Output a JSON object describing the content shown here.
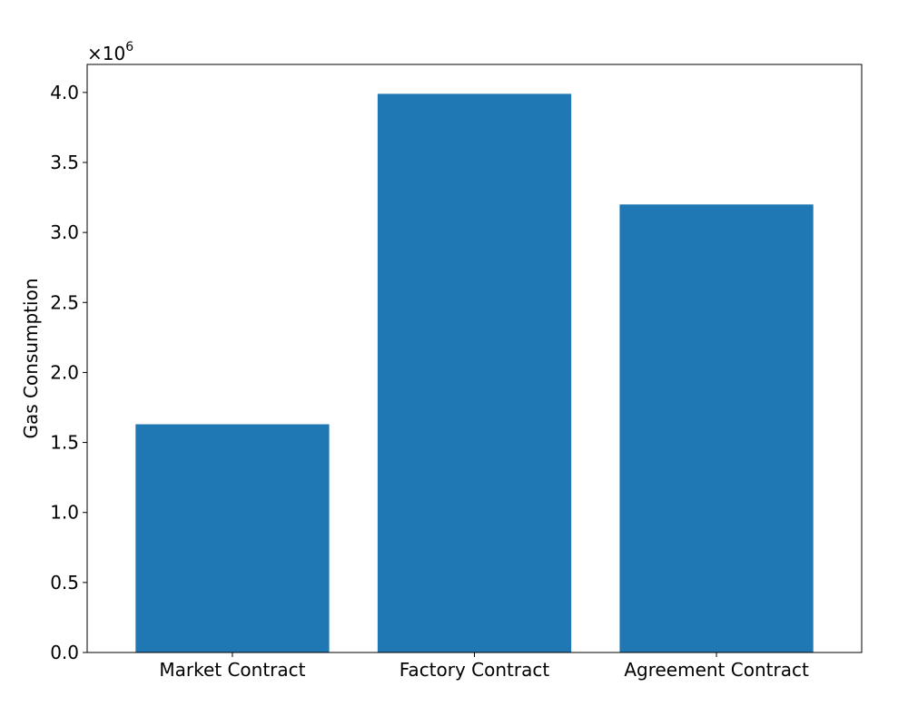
{
  "chart_data": {
    "type": "bar",
    "title": "",
    "xlabel": "",
    "ylabel": "Gas Consumption",
    "y_offset_base": "×10",
    "y_offset_exponent": "6",
    "y_scale_factor": 1000000,
    "categories": [
      "Market Contract",
      "Factory Contract",
      "Agreement Contract"
    ],
    "values": [
      1630000,
      3990000,
      3200000
    ],
    "ylim": [
      0,
      4200000
    ],
    "y_ticks": [
      0,
      500000,
      1000000,
      1500000,
      2000000,
      2500000,
      3000000,
      3500000,
      4000000
    ],
    "y_tick_labels": [
      "0.0",
      "0.5",
      "1.0",
      "1.5",
      "2.0",
      "2.5",
      "3.0",
      "3.5",
      "4.0"
    ],
    "bar_color": "#1f77b4",
    "grid": false,
    "legend": "none"
  }
}
